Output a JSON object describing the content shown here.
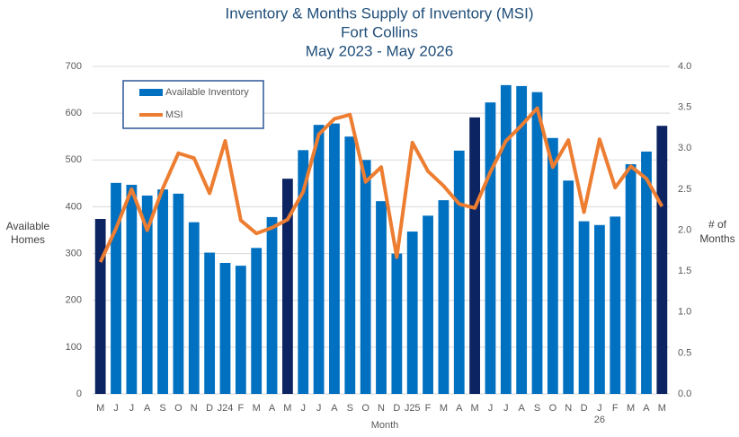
{
  "chart_data": {
    "type": "bar_line",
    "title": [
      "Inventory & Months Supply of Inventory (MSI)",
      "Fort Collins",
      "May 2023 - May 2026"
    ],
    "xlabel": "Month",
    "ylabel": [
      "Available",
      "Homes"
    ],
    "y2label": [
      "# of",
      "Months"
    ],
    "categories": [
      "M",
      "J",
      "J",
      "A",
      "S",
      "O",
      "N",
      "D",
      "J24",
      "F",
      "M",
      "A",
      "M",
      "J",
      "J",
      "A",
      "S",
      "O",
      "N",
      "D",
      "J25",
      "F",
      "M",
      "A",
      "M",
      "J",
      "J",
      "A",
      "S",
      "O",
      "N",
      "D",
      "J",
      "F",
      "M",
      "A",
      "M"
    ],
    "x_sublabels": [
      null,
      null,
      null,
      null,
      null,
      null,
      null,
      null,
      null,
      null,
      null,
      null,
      null,
      null,
      null,
      null,
      null,
      null,
      null,
      null,
      null,
      null,
      null,
      null,
      null,
      null,
      null,
      null,
      null,
      null,
      null,
      null,
      "26",
      null,
      null,
      null,
      null
    ],
    "series": [
      {
        "name": "Available Inventory",
        "kind": "bar",
        "color": "#0070c0",
        "colors": [
          "#0c2461",
          "#0070c0",
          "#0070c0",
          "#0070c0",
          "#0070c0",
          "#0070c0",
          "#0070c0",
          "#0070c0",
          "#0070c0",
          "#0070c0",
          "#0070c0",
          "#0070c0",
          "#0c2461",
          "#0070c0",
          "#0070c0",
          "#0070c0",
          "#0070c0",
          "#0070c0",
          "#0070c0",
          "#0070c0",
          "#0070c0",
          "#0070c0",
          "#0070c0",
          "#0070c0",
          "#0c2461",
          "#0070c0",
          "#0070c0",
          "#0070c0",
          "#0070c0",
          "#0070c0",
          "#0070c0",
          "#0070c0",
          "#0070c0",
          "#0070c0",
          "#0070c0",
          "#0070c0",
          "#0c2461"
        ],
        "values": [
          374,
          451,
          447,
          424,
          437,
          428,
          367,
          302,
          280,
          274,
          312,
          378,
          460,
          521,
          575,
          578,
          550,
          500,
          412,
          300,
          347,
          381,
          414,
          520,
          591,
          623,
          660,
          658,
          645,
          547,
          456,
          369,
          361,
          379,
          491,
          518,
          573
        ]
      },
      {
        "name": "MSI",
        "kind": "line",
        "axis": "y2",
        "color": "#ed7d31",
        "values": [
          1.61,
          2.02,
          2.5,
          2.0,
          2.51,
          2.94,
          2.88,
          2.45,
          3.09,
          2.12,
          1.96,
          2.03,
          2.13,
          2.47,
          3.17,
          3.36,
          3.41,
          2.59,
          2.77,
          1.67,
          3.07,
          2.72,
          2.54,
          2.32,
          2.27,
          2.71,
          3.09,
          3.28,
          3.49,
          2.77,
          3.1,
          2.22,
          3.11,
          2.52,
          2.78,
          2.63,
          2.29
        ]
      }
    ],
    "ylim": [
      0,
      700
    ],
    "yticks": [
      0,
      100,
      200,
      300,
      400,
      500,
      600,
      700
    ],
    "y2lim": [
      0,
      4
    ],
    "y2ticks": [
      {
        "value": 0,
        "label": "0.0"
      },
      {
        "value": 0.5,
        "label": "0.5"
      },
      {
        "value": 1,
        "label": "1.0"
      },
      {
        "value": 1.5,
        "label": "1.5"
      },
      {
        "value": 2,
        "label": "2.0"
      },
      {
        "value": 2.5,
        "label": "2.5"
      },
      {
        "value": 3,
        "label": "3.0"
      },
      {
        "value": 3.5,
        "label": "3.5"
      },
      {
        "value": 4,
        "label": "4.0"
      }
    ],
    "grid": true
  }
}
